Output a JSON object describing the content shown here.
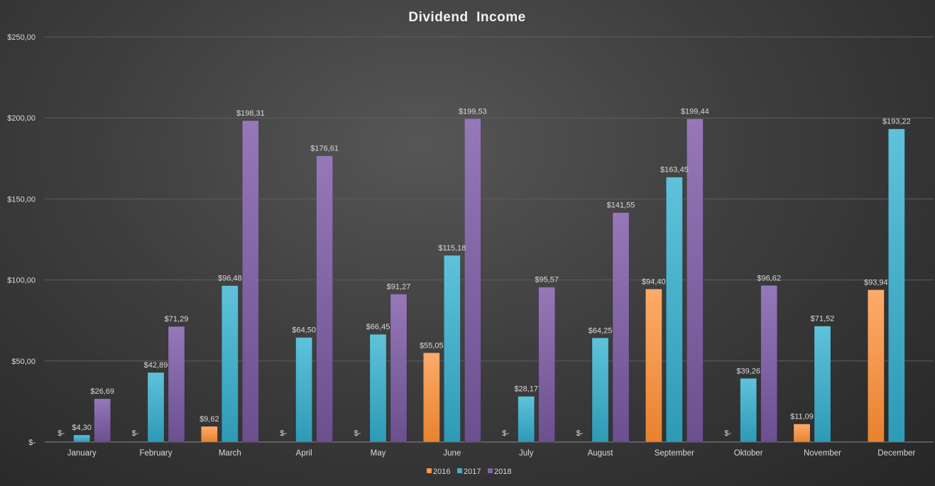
{
  "chart_data": {
    "type": "bar",
    "title": "Dividend  Income",
    "categories": [
      "January",
      "February",
      "March",
      "April",
      "May",
      "June",
      "July",
      "August",
      "September",
      "Oktober",
      "November",
      "December"
    ],
    "series": [
      {
        "name": "2016",
        "color": "#f79646",
        "values": [
          0,
          0,
          9.62,
          0,
          0,
          55.05,
          0,
          0,
          94.4,
          0,
          11.09,
          93.94
        ],
        "labels": [
          "$-",
          "$-",
          "$9,62",
          "$-",
          "$-",
          "$55,05",
          "$-",
          "$-",
          "$94,40",
          "$-",
          "$11,09",
          "$93,94"
        ]
      },
      {
        "name": "2017",
        "color": "#4bacc6",
        "values": [
          4.3,
          42.89,
          96.48,
          64.5,
          66.45,
          115.18,
          28.17,
          64.25,
          163.45,
          39.26,
          71.52,
          193.22
        ],
        "labels": [
          "$4,30",
          "$42,89",
          "$96,48",
          "$64,50",
          "$66,45",
          "$115,18",
          "$28,17",
          "$64,25",
          "$163,45",
          "$39,26",
          "$71,52",
          "$193,22"
        ]
      },
      {
        "name": "2018",
        "color": "#8064a2",
        "values": [
          26.69,
          71.29,
          198.31,
          176.61,
          91.27,
          199.53,
          95.57,
          141.55,
          199.44,
          96.62,
          null,
          null
        ],
        "labels": [
          "$26,69",
          "$71,29",
          "$198,31",
          "$176,61",
          "$91,27",
          "$199,53",
          "$95,57",
          "$141,55",
          "$199,44",
          "$96,62",
          "",
          ""
        ]
      }
    ],
    "yticks": [
      0,
      50,
      100,
      150,
      200,
      250
    ],
    "ytick_labels": [
      "$-",
      "$50,00",
      "$100,00",
      "$150,00",
      "$200,00",
      "$250,00"
    ],
    "ylim": [
      0,
      250
    ],
    "grid": true,
    "legend": "bottom"
  }
}
